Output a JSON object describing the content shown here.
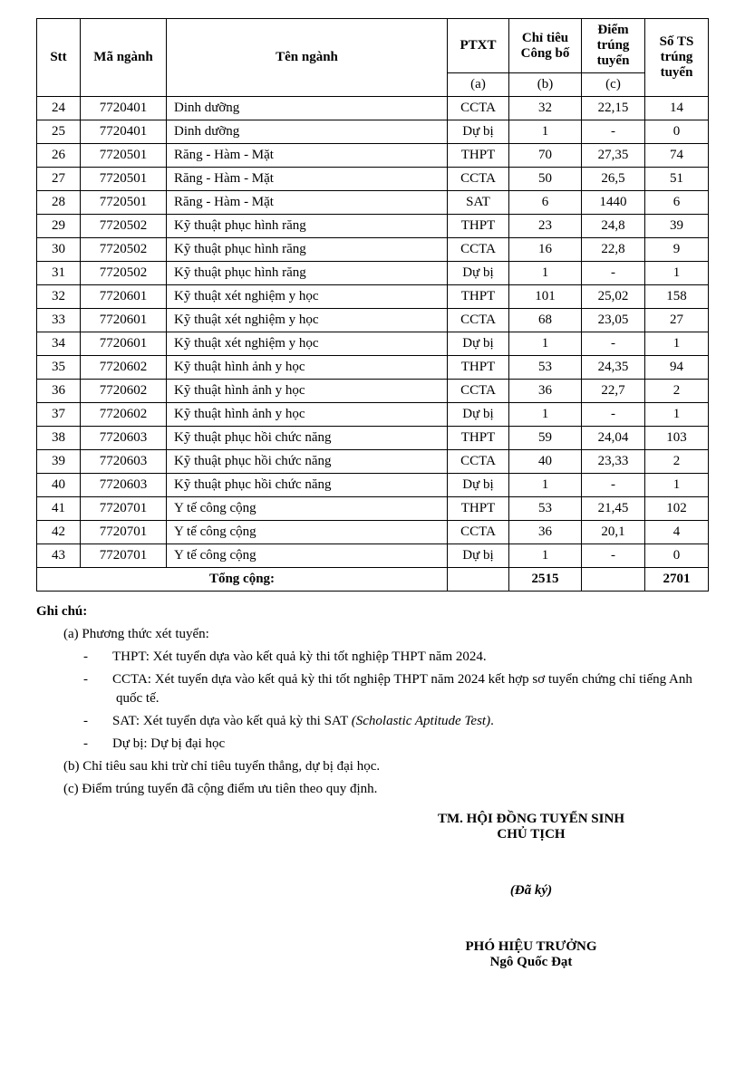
{
  "columns": {
    "stt": "Stt",
    "ma": "Mã ngành",
    "ten": "Tên ngành",
    "ptxt": "PTXT",
    "chitieu": "Chỉ tiêu Công bố",
    "diem": "Điểm trúng tuyển",
    "sots": "Số TS trúng tuyển",
    "sub_a": "(a)",
    "sub_b": "(b)",
    "sub_c": "(c)"
  },
  "rows": [
    {
      "stt": "24",
      "ma": "7720401",
      "ten": "Dinh dưỡng",
      "ptxt": "CCTA",
      "ct": "32",
      "diem": "22,15",
      "ts": "14"
    },
    {
      "stt": "25",
      "ma": "7720401",
      "ten": "Dinh dưỡng",
      "ptxt": "Dự bị",
      "ct": "1",
      "diem": "-",
      "ts": "0"
    },
    {
      "stt": "26",
      "ma": "7720501",
      "ten": "Răng - Hàm - Mặt",
      "ptxt": "THPT",
      "ct": "70",
      "diem": "27,35",
      "ts": "74"
    },
    {
      "stt": "27",
      "ma": "7720501",
      "ten": "Răng - Hàm - Mặt",
      "ptxt": "CCTA",
      "ct": "50",
      "diem": "26,5",
      "ts": "51"
    },
    {
      "stt": "28",
      "ma": "7720501",
      "ten": "Răng - Hàm - Mặt",
      "ptxt": "SAT",
      "ct": "6",
      "diem": "1440",
      "ts": "6"
    },
    {
      "stt": "29",
      "ma": "7720502",
      "ten": "Kỹ thuật phục hình răng",
      "ptxt": "THPT",
      "ct": "23",
      "diem": "24,8",
      "ts": "39"
    },
    {
      "stt": "30",
      "ma": "7720502",
      "ten": "Kỹ thuật phục hình răng",
      "ptxt": "CCTA",
      "ct": "16",
      "diem": "22,8",
      "ts": "9"
    },
    {
      "stt": "31",
      "ma": "7720502",
      "ten": "Kỹ thuật phục hình răng",
      "ptxt": "Dự bị",
      "ct": "1",
      "diem": "-",
      "ts": "1"
    },
    {
      "stt": "32",
      "ma": "7720601",
      "ten": "Kỹ thuật xét nghiệm y học",
      "ptxt": "THPT",
      "ct": "101",
      "diem": "25,02",
      "ts": "158"
    },
    {
      "stt": "33",
      "ma": "7720601",
      "ten": "Kỹ thuật xét nghiệm y học",
      "ptxt": "CCTA",
      "ct": "68",
      "diem": "23,05",
      "ts": "27"
    },
    {
      "stt": "34",
      "ma": "7720601",
      "ten": "Kỹ thuật xét nghiệm y học",
      "ptxt": "Dự bị",
      "ct": "1",
      "diem": "-",
      "ts": "1"
    },
    {
      "stt": "35",
      "ma": "7720602",
      "ten": "Kỹ thuật hình ảnh y học",
      "ptxt": "THPT",
      "ct": "53",
      "diem": "24,35",
      "ts": "94"
    },
    {
      "stt": "36",
      "ma": "7720602",
      "ten": "Kỹ thuật hình ảnh y học",
      "ptxt": "CCTA",
      "ct": "36",
      "diem": "22,7",
      "ts": "2"
    },
    {
      "stt": "37",
      "ma": "7720602",
      "ten": "Kỹ thuật hình ảnh y học",
      "ptxt": "Dự bị",
      "ct": "1",
      "diem": "-",
      "ts": "1"
    },
    {
      "stt": "38",
      "ma": "7720603",
      "ten": "Kỹ thuật phục hồi chức năng",
      "ptxt": "THPT",
      "ct": "59",
      "diem": "24,04",
      "ts": "103"
    },
    {
      "stt": "39",
      "ma": "7720603",
      "ten": "Kỹ thuật phục hồi chức năng",
      "ptxt": "CCTA",
      "ct": "40",
      "diem": "23,33",
      "ts": "2"
    },
    {
      "stt": "40",
      "ma": "7720603",
      "ten": "Kỹ thuật phục hồi chức năng",
      "ptxt": "Dự bị",
      "ct": "1",
      "diem": "-",
      "ts": "1"
    },
    {
      "stt": "41",
      "ma": "7720701",
      "ten": "Y tế công cộng",
      "ptxt": "THPT",
      "ct": "53",
      "diem": "21,45",
      "ts": "102"
    },
    {
      "stt": "42",
      "ma": "7720701",
      "ten": "Y tế công cộng",
      "ptxt": "CCTA",
      "ct": "36",
      "diem": "20,1",
      "ts": "4"
    },
    {
      "stt": "43",
      "ma": "7720701",
      "ten": "Y tế công cộng",
      "ptxt": "Dự bị",
      "ct": "1",
      "diem": "-",
      "ts": "0"
    }
  ],
  "total": {
    "label": "Tổng cộng:",
    "ct": "2515",
    "ts": "2701"
  },
  "notes": {
    "heading": "Ghi chú:",
    "a_label": "(a) Phương thức xét tuyển:",
    "thpt": "THPT: Xét tuyển dựa vào kết quả kỳ thi tốt nghiệp THPT năm 2024.",
    "ccta": "CCTA: Xét tuyển dựa vào kết quả kỳ thi tốt nghiệp THPT năm 2024 kết hợp sơ tuyển chứng chỉ tiếng Anh quốc tế.",
    "sat_pre": "SAT: Xét tuyển dựa vào kết quả kỳ thi SAT ",
    "sat_italic": "(Scholastic Aptitude Test)",
    "sat_post": ".",
    "dubi": "Dự bị: Dự bị đại học",
    "b": "(b) Chỉ tiêu sau khi trừ chỉ tiêu tuyển thẳng, dự bị đại học.",
    "c": "(c) Điểm trúng tuyển đã cộng điểm ưu tiên theo quy định."
  },
  "signature": {
    "line1": "TM. HỘI ĐỒNG TUYỂN SINH",
    "line2": "CHỦ TỊCH",
    "signed": "(Đã ký)",
    "line3": "PHÓ HIỆU TRƯỞNG",
    "name": "Ngô Quốc Đạt"
  }
}
